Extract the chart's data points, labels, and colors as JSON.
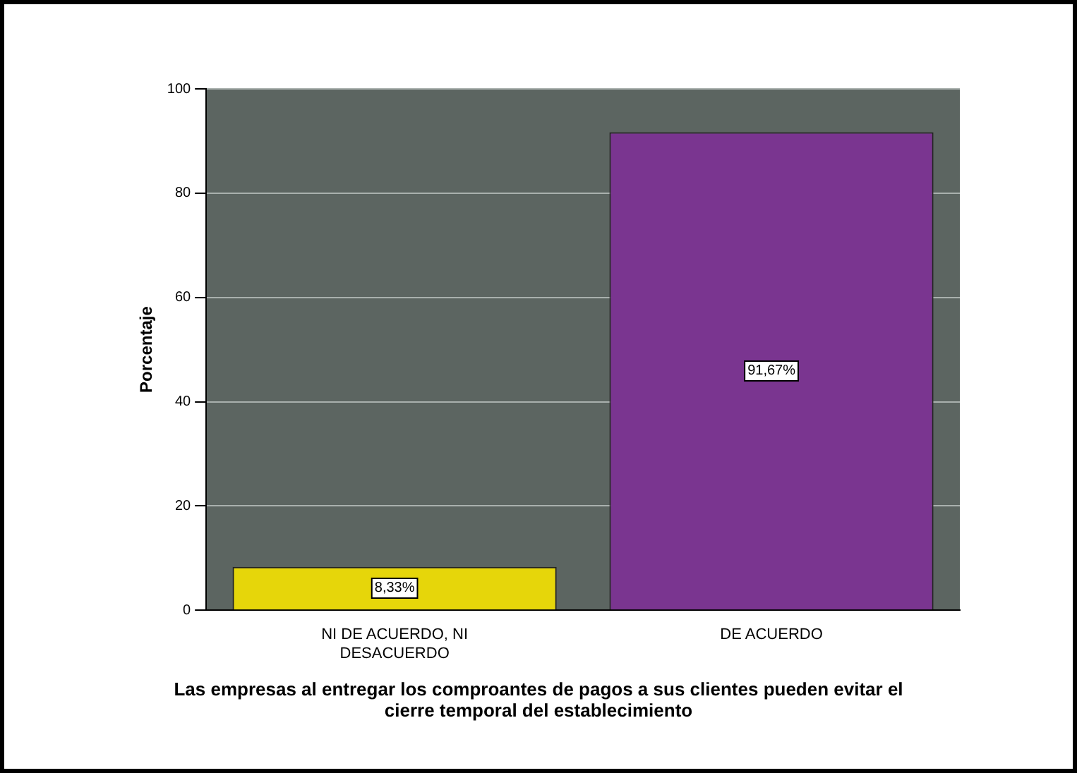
{
  "chart_data": {
    "type": "bar",
    "xlabel": "Las empresas al entregar los comproantes de pagos a sus clientes pueden evitar el cierre temporal del establecimiento",
    "ylabel": "Porcentaje",
    "categories": [
      "NI DE ACUERDO, NI DESACUERDO",
      "DE ACUERDO"
    ],
    "values": [
      8.33,
      91.67
    ],
    "colors": [
      "#e6d60a",
      "#7a3590"
    ],
    "value_labels": [
      "8,33%",
      "91,67%"
    ],
    "ylim": [
      0,
      100
    ],
    "yticks": [
      0,
      20,
      40,
      60,
      80,
      100
    ],
    "grid": "y",
    "legend": false
  }
}
